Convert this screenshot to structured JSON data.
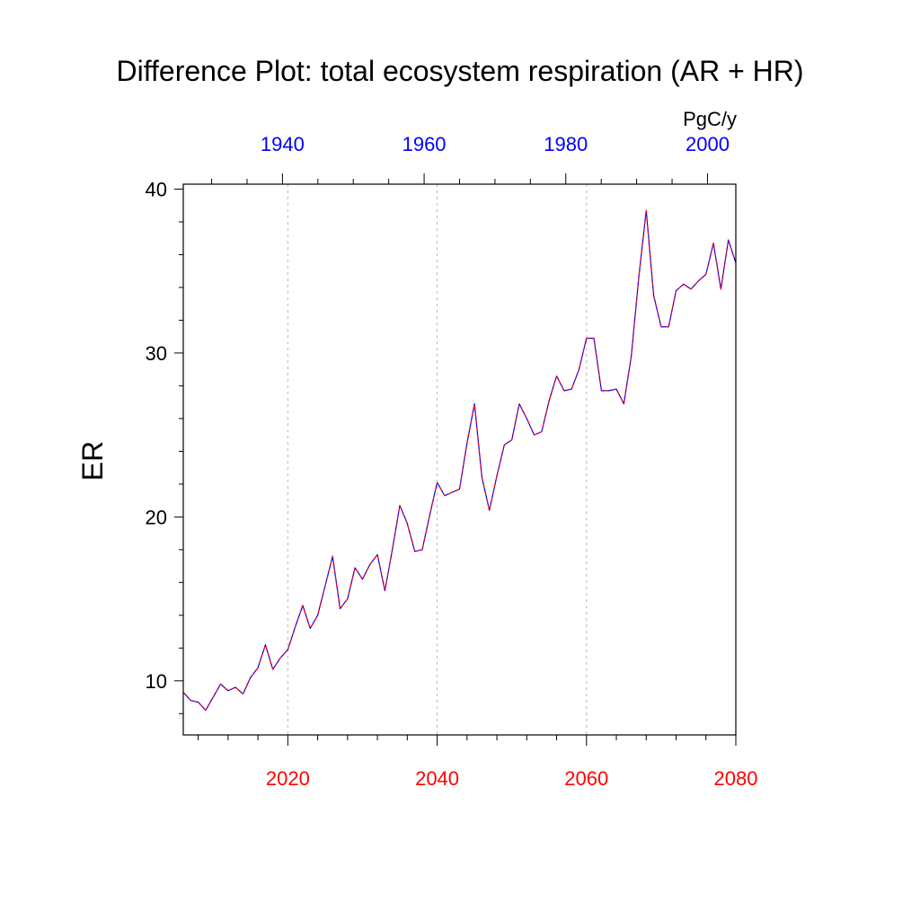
{
  "chart_data": {
    "type": "line",
    "title": "Difference Plot: total ecosystem respiration (AR + HR)",
    "ylabel": "ER",
    "units": "PgC/y",
    "ylim": [
      6.7,
      40.3
    ],
    "yticks": [
      10,
      20,
      30,
      40
    ],
    "y_minor_step": 2,
    "bottom_axis": {
      "range": [
        2006,
        2080
      ],
      "ticks": [
        2020,
        2040,
        2060,
        2080
      ],
      "minor_step": 4,
      "color": "#ff0000"
    },
    "top_axis": {
      "range": [
        1926,
        2004
      ],
      "ticks": [
        1940,
        1960,
        1980,
        2000
      ],
      "minor_step": 5,
      "color": "#0000ff"
    },
    "grid": "vertical-dashed-at-major-bottom-ticks",
    "series": [
      {
        "color": "#0000ff",
        "style": "solid",
        "x": [
          2006,
          2007,
          2008,
          2009,
          2010,
          2011,
          2012,
          2013,
          2014,
          2015,
          2016,
          2017,
          2018,
          2019,
          2020,
          2021,
          2022,
          2023,
          2024,
          2025,
          2026,
          2027,
          2028,
          2029,
          2030,
          2031,
          2032,
          2033,
          2034,
          2035,
          2036,
          2037,
          2038,
          2039,
          2040,
          2041,
          2042,
          2043,
          2044,
          2045,
          2046,
          2047,
          2048,
          2049,
          2050,
          2051,
          2052,
          2053,
          2054,
          2055,
          2056,
          2057,
          2058,
          2059,
          2060,
          2061,
          2062,
          2063,
          2064,
          2065,
          2066,
          2067,
          2068,
          2069,
          2070,
          2071,
          2072,
          2073,
          2074,
          2075,
          2076,
          2077,
          2078,
          2079,
          2080
        ],
        "y": [
          9.3,
          8.8,
          8.7,
          8.2,
          9.0,
          9.8,
          9.4,
          9.6,
          9.2,
          10.2,
          10.8,
          12.2,
          10.7,
          11.4,
          11.9,
          13.3,
          14.6,
          13.2,
          14.0,
          15.8,
          17.6,
          14.4,
          15.0,
          16.9,
          16.2,
          17.1,
          17.7,
          15.5,
          18.0,
          20.7,
          19.6,
          17.9,
          18.0,
          20.1,
          22.1,
          21.3,
          21.5,
          21.7,
          24.5,
          26.9,
          22.4,
          20.4,
          22.5,
          24.4,
          24.7,
          26.9,
          26.0,
          25.0,
          25.2,
          27.1,
          28.6,
          27.7,
          27.8,
          29.0,
          30.9,
          30.9,
          27.7,
          27.7,
          27.8,
          26.9,
          29.8,
          34.6,
          38.7,
          33.5,
          31.6,
          31.6,
          33.8,
          34.2,
          33.9,
          34.4,
          34.8,
          36.7,
          33.9,
          36.9,
          35.5
        ]
      },
      {
        "color": "#ff0000",
        "style": "dashed",
        "x": [
          2006,
          2007,
          2008,
          2009,
          2010,
          2011,
          2012,
          2013,
          2014,
          2015,
          2016,
          2017,
          2018,
          2019,
          2020,
          2021,
          2022,
          2023,
          2024,
          2025,
          2026,
          2027,
          2028,
          2029,
          2030,
          2031,
          2032,
          2033,
          2034,
          2035,
          2036,
          2037,
          2038,
          2039,
          2040,
          2041,
          2042,
          2043,
          2044,
          2045,
          2046,
          2047,
          2048,
          2049,
          2050,
          2051,
          2052,
          2053,
          2054,
          2055,
          2056,
          2057,
          2058,
          2059,
          2060,
          2061,
          2062,
          2063,
          2064,
          2065,
          2066,
          2067,
          2068,
          2069,
          2070,
          2071,
          2072,
          2073,
          2074,
          2075,
          2076,
          2077,
          2078,
          2079,
          2080
        ],
        "y": [
          9.3,
          8.8,
          8.7,
          8.2,
          9.0,
          9.8,
          9.4,
          9.6,
          9.2,
          10.2,
          10.8,
          12.2,
          10.7,
          11.4,
          11.9,
          13.3,
          14.6,
          13.2,
          14.0,
          15.8,
          17.6,
          14.4,
          15.0,
          16.9,
          16.2,
          17.1,
          17.7,
          15.5,
          18.0,
          20.7,
          19.6,
          17.9,
          18.0,
          20.1,
          22.1,
          21.3,
          21.5,
          21.7,
          24.5,
          26.9,
          22.4,
          20.4,
          22.5,
          24.4,
          24.7,
          26.9,
          26.0,
          25.0,
          25.2,
          27.1,
          28.6,
          27.7,
          27.8,
          29.0,
          30.9,
          30.9,
          27.7,
          27.7,
          27.8,
          26.9,
          29.8,
          34.6,
          38.7,
          33.5,
          31.6,
          31.6,
          33.8,
          34.2,
          33.9,
          34.4,
          34.8,
          36.7,
          33.9,
          36.9,
          35.5
        ]
      }
    ]
  }
}
